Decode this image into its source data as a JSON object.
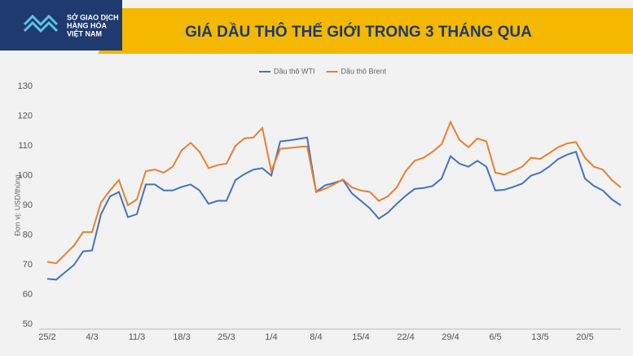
{
  "header": {
    "logo_lines": [
      "SỞ GIAO DỊCH",
      "HÀNG HÓA",
      "VIỆT NAM"
    ]
  },
  "chart_data": {
    "type": "line",
    "title": "GIÁ DẦU THÔ THẾ GIỚI TRONG 3 THÁNG QUA",
    "y_label": "Đơn vị: USD/thùng",
    "categories": [
      "25/2",
      null,
      null,
      null,
      null,
      "4/3",
      null,
      null,
      null,
      null,
      "11/3",
      null,
      null,
      null,
      null,
      "18/3",
      null,
      null,
      null,
      null,
      "25/3",
      null,
      null,
      null,
      null,
      "1/4",
      null,
      null,
      null,
      null,
      "8/4",
      null,
      null,
      null,
      null,
      "15/4",
      null,
      null,
      null,
      null,
      "22/4",
      null,
      null,
      null,
      null,
      "29/4",
      null,
      null,
      null,
      null,
      "6/5",
      null,
      null,
      null,
      null,
      "13/5",
      null,
      null,
      null,
      null,
      "20/5",
      null,
      null,
      null,
      null
    ],
    "series": [
      {
        "name": "Dầu thô WTI",
        "color": "#4472c4",
        "values": [
          65.3,
          65,
          67.5,
          70,
          74.5,
          74.8,
          87,
          93,
          94.5,
          86,
          87,
          97,
          97,
          95,
          95,
          96.2,
          97,
          95,
          90.5,
          91.5,
          91.5,
          98.5,
          100.5,
          102,
          102.5,
          100,
          111.5,
          111.8,
          112.3,
          112.8,
          94.5,
          96.7,
          97.5,
          98.5,
          94,
          91.5,
          89,
          85.5,
          87.5,
          90.5,
          93.2,
          95.5,
          95.8,
          96.5,
          99,
          106.5,
          104,
          103,
          105,
          103,
          95,
          95.2,
          96.2,
          97.3,
          100,
          101,
          103,
          105.5,
          107,
          108,
          99,
          96.5,
          95,
          92,
          90
        ]
      },
      {
        "name": "Dầu thô Brent",
        "color": "#ed7d31",
        "values": [
          71,
          70.5,
          73.5,
          76.5,
          81,
          81,
          91,
          95,
          98.5,
          90,
          92,
          101.5,
          102,
          101,
          103,
          108.5,
          111,
          108,
          102.5,
          103.5,
          104,
          110,
          112.5,
          112.8,
          116,
          101.5,
          109,
          109.3,
          109.6,
          109.8,
          94.5,
          95.6,
          97,
          98.7,
          96,
          95,
          94.5,
          91.5,
          93,
          96,
          101.5,
          105,
          106,
          108,
          110.5,
          118,
          112,
          109.5,
          112.5,
          111.5,
          101,
          100.3,
          101.6,
          103,
          106,
          105.6,
          107.5,
          109.5,
          110.8,
          111.3,
          106,
          103,
          102,
          98.5,
          96
        ]
      }
    ],
    "ylim": [
      50,
      130
    ],
    "yticks": [
      50,
      60,
      70,
      80,
      90,
      100,
      110,
      120,
      130
    ],
    "legend": "top",
    "grid": false
  }
}
